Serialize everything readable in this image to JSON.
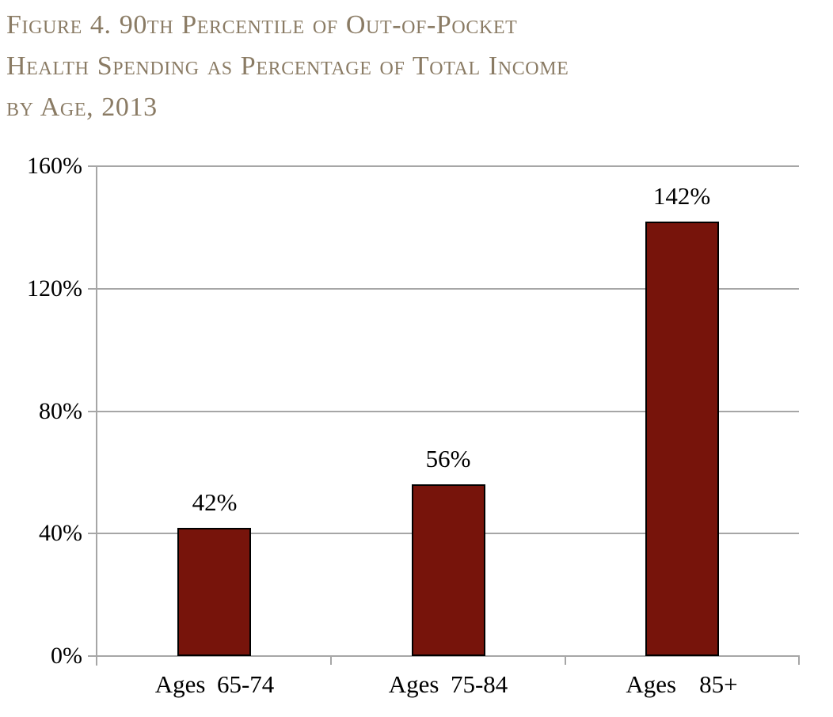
{
  "figure": {
    "title_full": "Figure 4. 90th Percentile of Out-of-Pocket Health Spending as Percentage of Total Income by Age, 2013",
    "title_lines": [
      "Figure 4. 90th Percentile of Out-of-Pocket",
      "Health Spending as Percentage of Total Income",
      "by Age, 2013"
    ]
  },
  "colors": {
    "title_text": "#8a7b64",
    "bar_fill": "#77140b",
    "bar_border": "#000000",
    "grid_and_axis": "#a6a6a6",
    "label_text": "#000000",
    "background": "#ffffff"
  },
  "chart_data": {
    "type": "bar",
    "title": "Figure 4. 90th Percentile of Out-of-Pocket Health Spending as Percentage of Total Income by Age, 2013",
    "categories": [
      "Ages 65-74",
      "Ages 75-84",
      "Ages  85+"
    ],
    "values": [
      42,
      56,
      142
    ],
    "value_labels": [
      "42%",
      "56%",
      "142%"
    ],
    "xlabel": "",
    "ylabel": "",
    "ylim": [
      0,
      160
    ],
    "yticks": [
      0,
      40,
      80,
      120,
      160
    ],
    "ytick_labels": [
      "0%",
      "40%",
      "80%",
      "120%",
      "160%"
    ],
    "grid": "horizontal",
    "legend": "none"
  }
}
